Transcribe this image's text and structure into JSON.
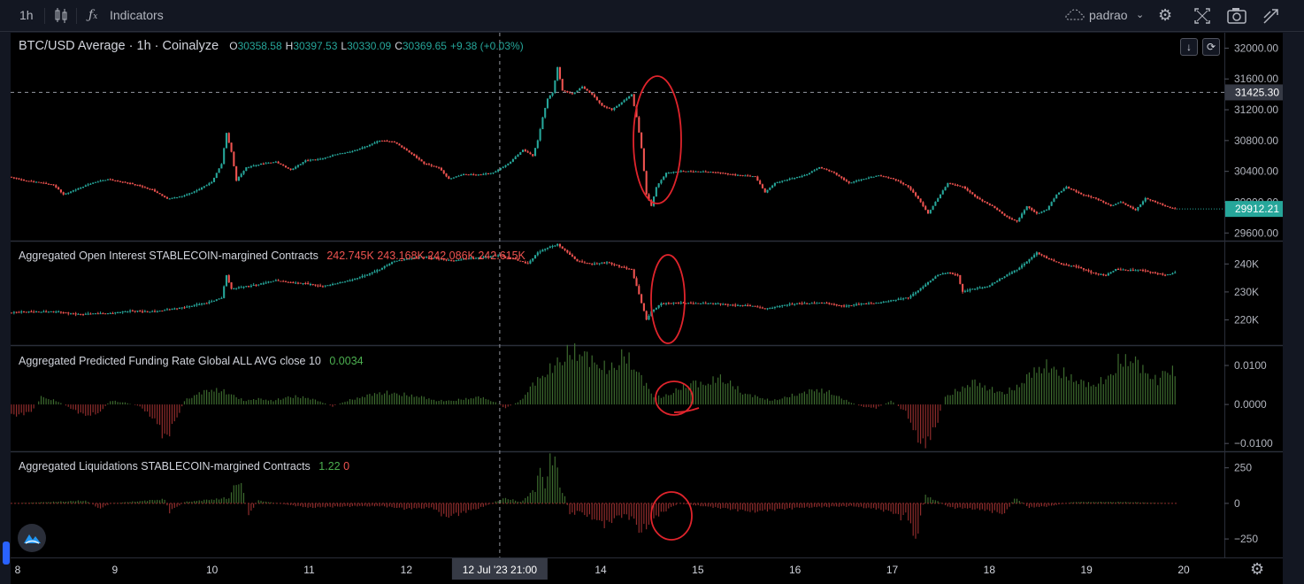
{
  "toolbar": {
    "interval": "1h",
    "indicators_label": "Indicators",
    "layout_name": "padrao",
    "icons": [
      "candles-icon",
      "fx-icon",
      "cloud-icon",
      "chevron-down-icon",
      "gear-icon",
      "fullscreen-icon",
      "camera-icon",
      "publish-icon"
    ]
  },
  "colors": {
    "up": "#26a69a",
    "down": "#ef5350",
    "up_hist": "#3d6b2f",
    "down_hist": "#8f2c2c",
    "annotation": "#e0242c",
    "crosshair_label": "#363a45",
    "last_price_bg": "#26a69a"
  },
  "chart_data": [
    {
      "type": "candlestick",
      "title": "BTC/USD Average · 1h · Coinalyze",
      "ohlc_labels": {
        "O": "30358.58",
        "H": "30397.53",
        "L": "30330.09",
        "C": "30369.65"
      },
      "change": "+9.38 (+0.03%)",
      "y_ticks": [
        "32000.00",
        "31600.00",
        "31200.00",
        "30800.00",
        "30400.00",
        "30000.00",
        "29600.00"
      ],
      "ylim": [
        29500,
        32200
      ],
      "crosshair_price": "31425.30",
      "last_price": "29912.21",
      "x_ticks": [
        "8",
        "9",
        "10",
        "11",
        "12",
        "14",
        "15",
        "16",
        "17",
        "18",
        "19",
        "20"
      ],
      "crosshair_time": "12 Jul '23   21:00",
      "price_path": [
        [
          0,
          30330
        ],
        [
          6,
          30280
        ],
        [
          12,
          30260
        ],
        [
          18,
          30220
        ],
        [
          22,
          30100
        ],
        [
          28,
          30180
        ],
        [
          34,
          30250
        ],
        [
          40,
          30300
        ],
        [
          46,
          30260
        ],
        [
          52,
          30220
        ],
        [
          58,
          30160
        ],
        [
          64,
          30040
        ],
        [
          70,
          30080
        ],
        [
          76,
          30150
        ],
        [
          82,
          30260
        ],
        [
          86,
          30500
        ],
        [
          88,
          30900
        ],
        [
          90,
          30650
        ],
        [
          92,
          30280
        ],
        [
          96,
          30450
        ],
        [
          102,
          30500
        ],
        [
          108,
          30520
        ],
        [
          114,
          30420
        ],
        [
          120,
          30540
        ],
        [
          126,
          30560
        ],
        [
          132,
          30620
        ],
        [
          138,
          30650
        ],
        [
          144,
          30720
        ],
        [
          150,
          30800
        ],
        [
          156,
          30780
        ],
        [
          162,
          30650
        ],
        [
          168,
          30500
        ],
        [
          174,
          30450
        ],
        [
          178,
          30300
        ],
        [
          184,
          30360
        ],
        [
          190,
          30360
        ],
        [
          196,
          30380
        ],
        [
          202,
          30500
        ],
        [
          208,
          30680
        ],
        [
          212,
          30600
        ],
        [
          214,
          30800
        ],
        [
          216,
          31100
        ],
        [
          218,
          31350
        ],
        [
          220,
          31420
        ],
        [
          222,
          31750
        ],
        [
          224,
          31450
        ],
        [
          228,
          31400
        ],
        [
          232,
          31500
        ],
        [
          236,
          31400
        ],
        [
          240,
          31250
        ],
        [
          244,
          31200
        ],
        [
          248,
          31300
        ],
        [
          252,
          31400
        ],
        [
          254,
          31100
        ],
        [
          256,
          30700
        ],
        [
          258,
          30100
        ],
        [
          260,
          29950
        ],
        [
          262,
          30200
        ],
        [
          266,
          30380
        ],
        [
          272,
          30400
        ],
        [
          280,
          30400
        ],
        [
          288,
          30380
        ],
        [
          296,
          30350
        ],
        [
          302,
          30330
        ],
        [
          306,
          30130
        ],
        [
          310,
          30250
        ],
        [
          316,
          30300
        ],
        [
          322,
          30350
        ],
        [
          328,
          30450
        ],
        [
          334,
          30380
        ],
        [
          340,
          30250
        ],
        [
          346,
          30300
        ],
        [
          352,
          30350
        ],
        [
          358,
          30300
        ],
        [
          364,
          30200
        ],
        [
          368,
          30050
        ],
        [
          372,
          29850
        ],
        [
          376,
          30050
        ],
        [
          380,
          30250
        ],
        [
          386,
          30200
        ],
        [
          392,
          30050
        ],
        [
          398,
          29950
        ],
        [
          404,
          29800
        ],
        [
          408,
          29750
        ],
        [
          412,
          29950
        ],
        [
          416,
          29850
        ],
        [
          420,
          29900
        ],
        [
          424,
          30100
        ],
        [
          428,
          30200
        ],
        [
          434,
          30100
        ],
        [
          440,
          30050
        ],
        [
          446,
          29950
        ],
        [
          450,
          30000
        ],
        [
          456,
          29900
        ],
        [
          460,
          30050
        ],
        [
          464,
          30000
        ],
        [
          468,
          29950
        ],
        [
          472,
          29912
        ]
      ]
    },
    {
      "type": "candlestick",
      "title": "Aggregated Open Interest STABLECOIN-margined Contracts",
      "values_labels": [
        "242.745K",
        "243.168K",
        "242.086K",
        "242.615K"
      ],
      "y_ticks": [
        "240K",
        "230K",
        "220K"
      ],
      "ylim": [
        211,
        248
      ],
      "oi_path": [
        [
          0,
          222.6
        ],
        [
          10,
          223
        ],
        [
          20,
          222.8
        ],
        [
          30,
          222
        ],
        [
          40,
          222.4
        ],
        [
          50,
          223.2
        ],
        [
          60,
          223
        ],
        [
          70,
          224.5
        ],
        [
          80,
          226
        ],
        [
          86,
          228
        ],
        [
          88,
          236
        ],
        [
          90,
          231
        ],
        [
          96,
          232
        ],
        [
          102,
          233
        ],
        [
          108,
          234
        ],
        [
          114,
          233.5
        ],
        [
          120,
          233
        ],
        [
          126,
          232
        ],
        [
          132,
          233
        ],
        [
          138,
          234
        ],
        [
          144,
          236
        ],
        [
          150,
          238
        ],
        [
          156,
          241
        ],
        [
          162,
          242
        ],
        [
          168,
          242.5
        ],
        [
          174,
          242
        ],
        [
          180,
          241
        ],
        [
          186,
          242
        ],
        [
          192,
          242.5
        ],
        [
          198,
          243
        ],
        [
          204,
          242
        ],
        [
          210,
          240
        ],
        [
          214,
          244
        ],
        [
          218,
          246
        ],
        [
          222,
          247
        ],
        [
          226,
          244
        ],
        [
          230,
          241
        ],
        [
          236,
          240
        ],
        [
          242,
          240.5
        ],
        [
          248,
          239
        ],
        [
          252,
          238
        ],
        [
          254,
          232
        ],
        [
          256,
          226
        ],
        [
          258,
          220
        ],
        [
          260,
          223
        ],
        [
          264,
          226
        ],
        [
          270,
          226
        ],
        [
          280,
          226
        ],
        [
          290,
          225.6
        ],
        [
          300,
          225
        ],
        [
          306,
          224
        ],
        [
          312,
          225
        ],
        [
          320,
          226
        ],
        [
          330,
          226
        ],
        [
          338,
          225
        ],
        [
          344,
          225.6
        ],
        [
          350,
          226
        ],
        [
          358,
          227
        ],
        [
          364,
          228
        ],
        [
          370,
          232
        ],
        [
          376,
          236
        ],
        [
          380,
          237
        ],
        [
          384,
          236
        ],
        [
          386,
          230
        ],
        [
          390,
          231
        ],
        [
          396,
          232
        ],
        [
          402,
          235
        ],
        [
          408,
          238
        ],
        [
          412,
          241
        ],
        [
          416,
          244
        ],
        [
          420,
          242
        ],
        [
          426,
          240
        ],
        [
          432,
          239
        ],
        [
          438,
          237
        ],
        [
          444,
          236
        ],
        [
          448,
          238
        ],
        [
          452,
          237.8
        ],
        [
          458,
          238
        ],
        [
          462,
          237
        ],
        [
          468,
          236
        ],
        [
          472,
          237
        ]
      ]
    },
    {
      "type": "histogram",
      "title": "Aggregated Predicted Funding Rate Global ALL AVG close 10",
      "value_label": "0.0034",
      "y_ticks": [
        "0.0100",
        "0.0000",
        "−0.0100"
      ],
      "ylim": [
        -0.012,
        0.015
      ],
      "funding_path": [
        [
          0,
          -0.003
        ],
        [
          8,
          -0.002
        ],
        [
          12,
          0.002
        ],
        [
          18,
          0.001
        ],
        [
          24,
          -0.001
        ],
        [
          30,
          -0.003
        ],
        [
          36,
          -0.002
        ],
        [
          40,
          0.001
        ],
        [
          46,
          0.0005
        ],
        [
          52,
          -0.0005
        ],
        [
          58,
          -0.004
        ],
        [
          62,
          -0.009
        ],
        [
          66,
          -0.005
        ],
        [
          70,
          0.001
        ],
        [
          76,
          0.003
        ],
        [
          82,
          0.004
        ],
        [
          88,
          0.003
        ],
        [
          94,
          0.001
        ],
        [
          100,
          0.0015
        ],
        [
          106,
          0.001
        ],
        [
          112,
          0.002
        ],
        [
          118,
          0.002
        ],
        [
          124,
          0.001
        ],
        [
          130,
          -0.0005
        ],
        [
          136,
          0.001
        ],
        [
          142,
          0.002
        ],
        [
          148,
          0.003
        ],
        [
          154,
          0.003
        ],
        [
          160,
          0.0025
        ],
        [
          166,
          0.002
        ],
        [
          172,
          0.001
        ],
        [
          178,
          0.001
        ],
        [
          184,
          0.0015
        ],
        [
          190,
          0.002
        ],
        [
          196,
          0.0005
        ],
        [
          200,
          -0.001
        ],
        [
          206,
          0.001
        ],
        [
          212,
          0.006
        ],
        [
          218,
          0.009
        ],
        [
          224,
          0.013
        ],
        [
          230,
          0.014
        ],
        [
          236,
          0.011
        ],
        [
          242,
          0.009
        ],
        [
          248,
          0.013
        ],
        [
          252,
          0.01
        ],
        [
          256,
          0.006
        ],
        [
          260,
          0.002
        ],
        [
          264,
          0.002
        ],
        [
          270,
          0.004
        ],
        [
          276,
          0.006
        ],
        [
          280,
          0.005
        ],
        [
          286,
          0.007
        ],
        [
          290,
          0.006
        ],
        [
          296,
          0.003
        ],
        [
          302,
          0.002
        ],
        [
          308,
          0.001
        ],
        [
          314,
          0.002
        ],
        [
          320,
          0.003
        ],
        [
          326,
          0.004
        ],
        [
          332,
          0.003
        ],
        [
          338,
          0.001
        ],
        [
          344,
          -0.0005
        ],
        [
          350,
          -0.001
        ],
        [
          356,
          0.001
        ],
        [
          362,
          -0.002
        ],
        [
          366,
          -0.008
        ],
        [
          370,
          -0.011
        ],
        [
          374,
          -0.006
        ],
        [
          378,
          0.002
        ],
        [
          384,
          0.004
        ],
        [
          390,
          0.006
        ],
        [
          396,
          0.004
        ],
        [
          402,
          0.003
        ],
        [
          408,
          0.005
        ],
        [
          414,
          0.009
        ],
        [
          420,
          0.01
        ],
        [
          426,
          0.008
        ],
        [
          432,
          0.006
        ],
        [
          438,
          0.005
        ],
        [
          444,
          0.007
        ],
        [
          448,
          0.011
        ],
        [
          454,
          0.012
        ],
        [
          460,
          0.008
        ],
        [
          464,
          0.006
        ],
        [
          468,
          0.01
        ],
        [
          472,
          0.007
        ]
      ]
    },
    {
      "type": "histogram",
      "title": "Aggregated Liquidations STABLECOIN-margined Contracts",
      "value_labels": [
        "1.22",
        "0"
      ],
      "y_ticks": [
        "250",
        "0",
        "−250"
      ],
      "ylim": [
        -380,
        360
      ],
      "liq_path": [
        [
          0,
          0
        ],
        [
          30,
          20
        ],
        [
          36,
          -40
        ],
        [
          40,
          0
        ],
        [
          62,
          30
        ],
        [
          64,
          -60
        ],
        [
          70,
          10
        ],
        [
          88,
          40
        ],
        [
          90,
          120
        ],
        [
          92,
          160
        ],
        [
          94,
          80
        ],
        [
          96,
          -80
        ],
        [
          100,
          20
        ],
        [
          120,
          -30
        ],
        [
          140,
          -20
        ],
        [
          150,
          -20
        ],
        [
          160,
          -40
        ],
        [
          170,
          -30
        ],
        [
          176,
          -100
        ],
        [
          190,
          -30
        ],
        [
          200,
          40
        ],
        [
          206,
          10
        ],
        [
          212,
          100
        ],
        [
          214,
          260
        ],
        [
          216,
          120
        ],
        [
          218,
          300
        ],
        [
          220,
          340
        ],
        [
          222,
          120
        ],
        [
          224,
          60
        ],
        [
          226,
          -80
        ],
        [
          230,
          -60
        ],
        [
          240,
          -150
        ],
        [
          248,
          -80
        ],
        [
          252,
          -120
        ],
        [
          254,
          -200
        ],
        [
          256,
          -180
        ],
        [
          258,
          -150
        ],
        [
          262,
          -80
        ],
        [
          270,
          0
        ],
        [
          280,
          -20
        ],
        [
          290,
          -40
        ],
        [
          300,
          -60
        ],
        [
          320,
          -30
        ],
        [
          340,
          -20
        ],
        [
          350,
          -40
        ],
        [
          356,
          -60
        ],
        [
          360,
          -100
        ],
        [
          362,
          -80
        ],
        [
          364,
          -150
        ],
        [
          366,
          -300
        ],
        [
          368,
          -80
        ],
        [
          370,
          60
        ],
        [
          372,
          40
        ],
        [
          380,
          -30
        ],
        [
          390,
          -40
        ],
        [
          398,
          -60
        ],
        [
          402,
          -80
        ],
        [
          406,
          40
        ],
        [
          408,
          20
        ],
        [
          412,
          -30
        ],
        [
          420,
          -20
        ],
        [
          430,
          10
        ],
        [
          450,
          10
        ],
        [
          472,
          0
        ]
      ]
    }
  ]
}
